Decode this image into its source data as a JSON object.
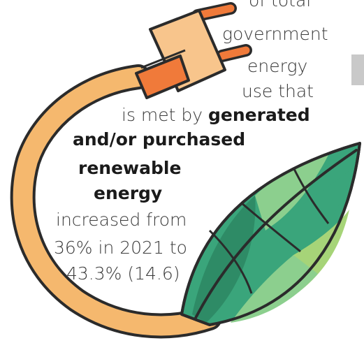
{
  "colors": {
    "cord": "#f5b86e",
    "cord_stroke": "#2b2b2b",
    "plug_body": "#f8c58c",
    "plug_collar": "#f07a3a",
    "prong": "#f07a3a",
    "leaf_dark": "#2e8b66",
    "leaf_mid": "#3aa57b",
    "leaf_light": "#8ccf8e",
    "leaf_lime": "#a6d478",
    "text": "#3a3a3a",
    "tab": "#c9c9c9"
  },
  "icons": [
    "plug-icon",
    "leaf-icon"
  ],
  "text": {
    "line1": "of total",
    "line2": "government",
    "line3": "energy",
    "line4": "use that",
    "line5_prefix": "is met by ",
    "line5_bold": "generated",
    "line6_bold": "and/or purchased",
    "line7_bold": "renewable",
    "line8_bold": "energy",
    "line9": "increased from",
    "line10": "36% in 2021 to",
    "line11": "43.3% (14.6)"
  }
}
